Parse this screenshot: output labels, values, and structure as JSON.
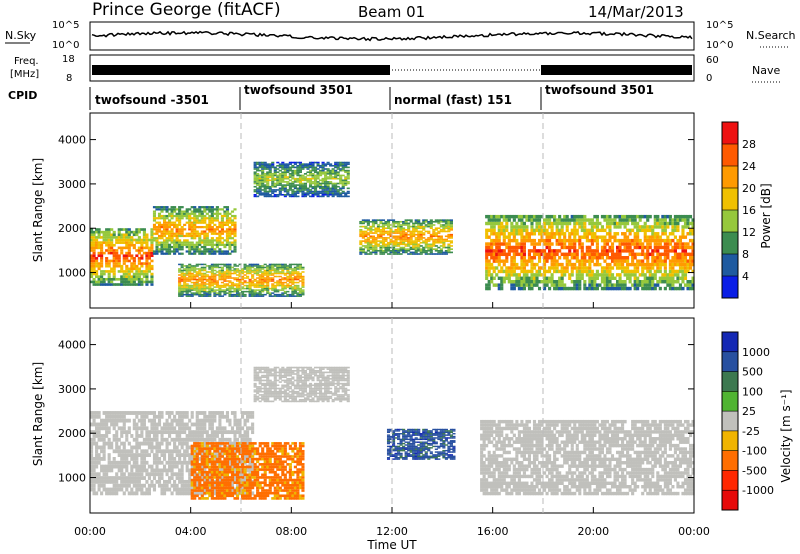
{
  "header": {
    "station": "Prince George (fitACF)",
    "beam": "Beam 01",
    "date": "14/Mar/2013"
  },
  "top_panels": {
    "nsky_label": "N.Sky",
    "nsky_ticks": [
      "10^5",
      "10^0"
    ],
    "nsearch_label": "N.Search",
    "nsearch_ticks": [
      "10^5",
      "10^0"
    ],
    "freq_label_1": "Freq.",
    "freq_label_2": "[MHz]",
    "freq_ticks": [
      "18",
      "8"
    ],
    "nave_label": "Nave",
    "nave_ticks": [
      "60",
      "0"
    ],
    "cpid_label": "CPID",
    "cpid_segments": [
      {
        "label": "twofsound -3501"
      },
      {
        "label": "twofsound 3501"
      },
      {
        "label": "normal (fast) 151"
      },
      {
        "label": "twofsound 3501"
      }
    ]
  },
  "power_colorbar": {
    "title": "Power [dB]",
    "ticks": [
      "28",
      "24",
      "20",
      "16",
      "12",
      "8",
      "4"
    ],
    "colors": [
      "#ee1111",
      "#ff5a00",
      "#ff9a00",
      "#f0c000",
      "#96c83c",
      "#3c8c50",
      "#1e5aa0",
      "#0a1ee6"
    ]
  },
  "velocity_colorbar": {
    "title": "Velocity [m s⁻¹]",
    "ticks": [
      "1000",
      "500",
      "100",
      "25",
      "-25",
      "-100",
      "-500",
      "-1000"
    ],
    "colors": [
      "#1428b4",
      "#2850a0",
      "#3c7850",
      "#50b432",
      "#c0c0bc",
      "#f0b400",
      "#ff6e00",
      "#ff2800",
      "#e60a0a"
    ]
  },
  "chart_data": [
    {
      "type": "heatmap",
      "quantity": "Power",
      "xlabel": "Time UT",
      "ylabel": "Slant Range [km]",
      "xlim": [
        0,
        24
      ],
      "ylim": [
        200,
        4600
      ],
      "x_ticks": [
        "00:00",
        "04:00",
        "08:00",
        "12:00",
        "16:00",
        "20:00",
        "00:00"
      ],
      "y_ticks": [
        "1000",
        "2000",
        "3000",
        "4000"
      ],
      "echo_regions": [
        {
          "t0": 0.0,
          "t1": 2.5,
          "r0": 700,
          "r1": 2000,
          "peak_db": 28
        },
        {
          "t0": 2.5,
          "t1": 5.8,
          "r0": 1400,
          "r1": 2500,
          "peak_db": 24
        },
        {
          "t0": 3.5,
          "t1": 8.5,
          "r0": 450,
          "r1": 1200,
          "peak_db": 24
        },
        {
          "t0": 6.5,
          "t1": 10.3,
          "r0": 2700,
          "r1": 3500,
          "peak_db": 16
        },
        {
          "t0": 10.7,
          "t1": 14.4,
          "r0": 1400,
          "r1": 2200,
          "peak_db": 24
        },
        {
          "t0": 15.7,
          "t1": 24.0,
          "r0": 600,
          "r1": 2300,
          "peak_db": 28
        }
      ]
    },
    {
      "type": "heatmap",
      "quantity": "Velocity",
      "xlabel": "Time UT",
      "ylabel": "Slant Range [km]",
      "xlim": [
        0,
        24
      ],
      "ylim": [
        200,
        4600
      ],
      "x_ticks": [
        "00:00",
        "04:00",
        "08:00",
        "12:00",
        "16:00",
        "20:00",
        "00:00"
      ],
      "y_ticks": [
        "1000",
        "2000",
        "3000",
        "4000"
      ],
      "echo_regions": [
        {
          "t0": 0.0,
          "t1": 6.5,
          "r0": 600,
          "r1": 2500,
          "velocity": 0
        },
        {
          "t0": 4.0,
          "t1": 8.5,
          "r0": 500,
          "r1": 1800,
          "velocity": -100
        },
        {
          "t0": 6.5,
          "t1": 10.3,
          "r0": 2700,
          "r1": 3500,
          "velocity": 0
        },
        {
          "t0": 11.8,
          "t1": 14.5,
          "r0": 1400,
          "r1": 2100,
          "velocity": 500
        },
        {
          "t0": 15.5,
          "t1": 24.0,
          "r0": 600,
          "r1": 2300,
          "velocity": 0
        }
      ]
    }
  ]
}
